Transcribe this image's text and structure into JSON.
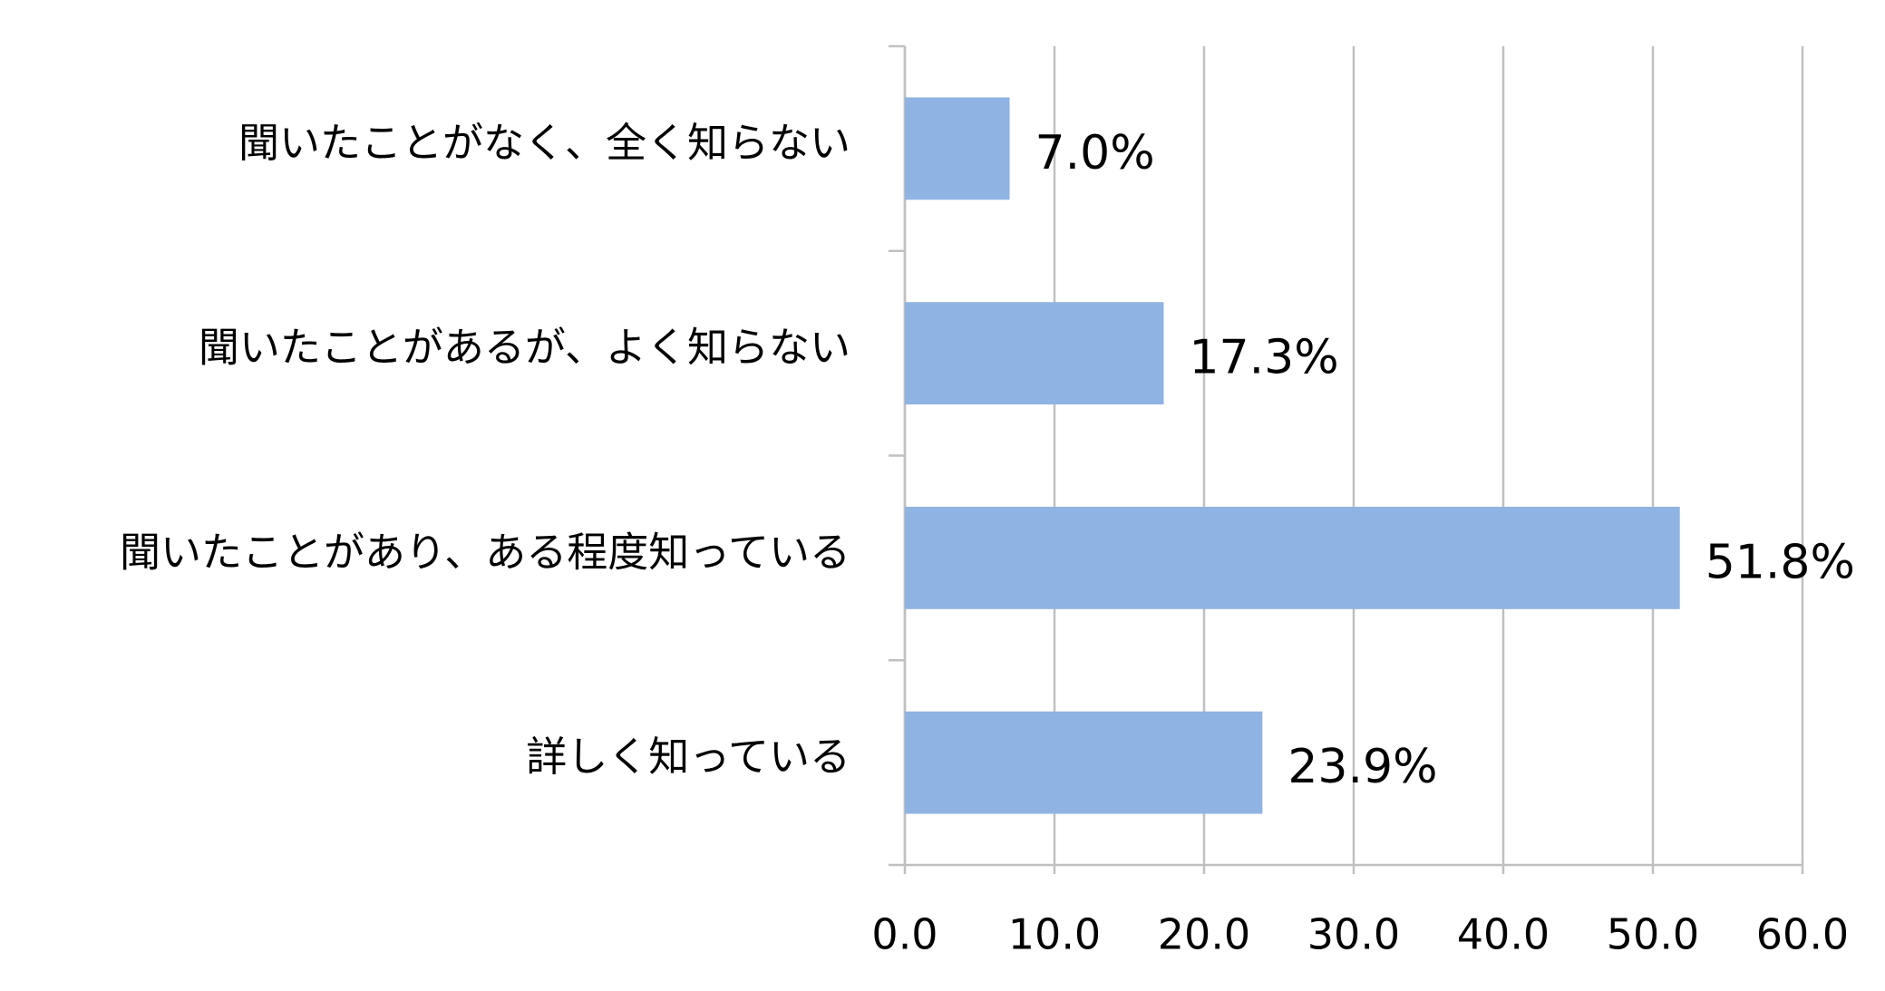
{
  "chart_data": {
    "type": "hbar",
    "categories": [
      "聞いたことがなく、全く知らない",
      "聞いたことがあるが、よく知らない",
      "聞いたことがあり、ある程度知っている",
      "詳しく知っている"
    ],
    "values": [
      7.0,
      17.3,
      51.8,
      23.9
    ],
    "value_labels": [
      "7.0%",
      "17.3%",
      "51.8%",
      "23.9%"
    ],
    "color": "#8fb3e2",
    "xlim": [
      0,
      60
    ],
    "xticks": [
      {
        "value": 0,
        "label": "0.0"
      },
      {
        "value": 10,
        "label": "10.0"
      },
      {
        "value": 20,
        "label": "20.0"
      },
      {
        "value": 30,
        "label": "30.0"
      },
      {
        "value": 40,
        "label": "40.0"
      },
      {
        "value": 50,
        "label": "50.0"
      },
      {
        "value": 60,
        "label": "60.0"
      }
    ],
    "grid": true
  }
}
